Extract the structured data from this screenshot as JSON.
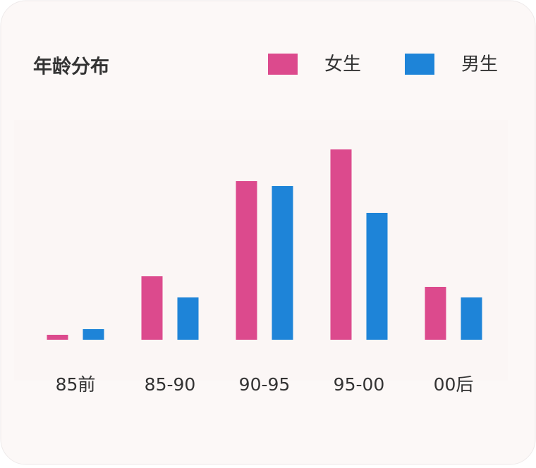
{
  "chart_data": {
    "type": "bar",
    "title": "年龄分布",
    "categories": [
      "85前",
      "85-90",
      "90-95",
      "95-00",
      "00后"
    ],
    "series": [
      {
        "name": "女生",
        "color": "#dc4a8d",
        "values": [
          7,
          90,
          225,
          270,
          75
        ]
      },
      {
        "name": "男生",
        "color": "#1e84d8",
        "values": [
          15,
          60,
          218,
          180,
          60
        ]
      }
    ],
    "ylim": [
      0,
      300
    ],
    "legend": "top-right"
  }
}
